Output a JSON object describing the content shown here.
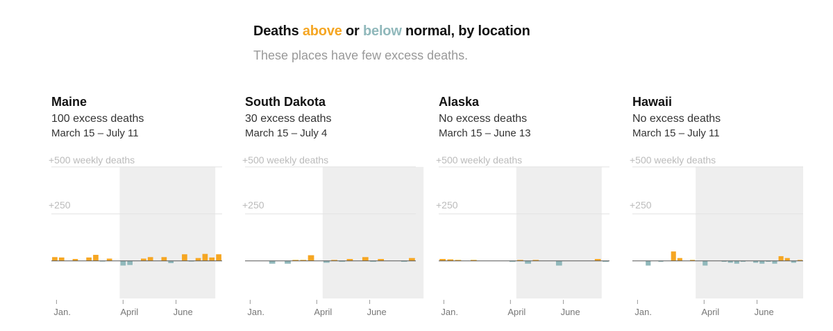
{
  "header": {
    "title_pre": "Deaths ",
    "title_above": "above",
    "title_mid": " or ",
    "title_below": "below",
    "title_post": " normal, by location",
    "subtitle": "These places have few excess deaths."
  },
  "colors": {
    "above": "#f5a623",
    "below": "#90b8bb",
    "shade": "#eeeeee",
    "grid": "#e2e2e2",
    "baseline": "#555555"
  },
  "chart_data": [
    {
      "type": "bar",
      "title": "Maine",
      "excess_text": "100 excess deaths",
      "period_text": "March 15 – July 11",
      "y_ticks": [
        "+500 weekly deaths",
        "+250"
      ],
      "x_ticks": [
        "Jan.",
        "April",
        "June"
      ],
      "ylim": [
        -200,
        500
      ],
      "values": [
        20,
        18,
        0,
        10,
        0,
        18,
        32,
        -3,
        12,
        0,
        -25,
        -22,
        0,
        12,
        20,
        0,
        20,
        -12,
        0,
        35,
        -3,
        15,
        37,
        18,
        35
      ],
      "shaded_range": [
        10,
        24
      ]
    },
    {
      "type": "bar",
      "title": "South Dakota",
      "excess_text": "30 excess deaths",
      "period_text": "March 15 – July 4",
      "y_ticks": [
        "+500 weekly deaths",
        "+250"
      ],
      "x_ticks": [
        "Jan.",
        "April",
        "June"
      ],
      "ylim": [
        -200,
        500
      ],
      "values": [
        0,
        0,
        0,
        -15,
        0,
        -15,
        5,
        5,
        30,
        0,
        -10,
        5,
        -5,
        10,
        0,
        20,
        -5,
        10,
        0,
        0,
        -5,
        15
      ],
      "shaded_range": [
        10,
        23
      ]
    },
    {
      "type": "bar",
      "title": "Alaska",
      "excess_text": "No excess deaths",
      "period_text": "March 15 – June 13",
      "y_ticks": [
        "+500 weekly deaths",
        "+250"
      ],
      "x_ticks": [
        "Jan.",
        "April",
        "June"
      ],
      "ylim": [
        -200,
        500
      ],
      "values": [
        10,
        8,
        5,
        0,
        5,
        0,
        0,
        0,
        0,
        -5,
        5,
        -15,
        5,
        0,
        0,
        -25,
        0,
        0,
        0,
        0,
        10,
        -5
      ],
      "shaded_range": [
        10,
        21
      ]
    },
    {
      "type": "bar",
      "title": "Hawaii",
      "excess_text": "No excess deaths",
      "period_text": "March 15 – July 11",
      "y_ticks": [
        "+500 weekly deaths",
        "+250"
      ],
      "x_ticks": [
        "Jan.",
        "April",
        "June"
      ],
      "ylim": [
        -200,
        500
      ],
      "values": [
        0,
        0,
        -25,
        0,
        -5,
        0,
        50,
        15,
        0,
        5,
        0,
        -25,
        0,
        0,
        -5,
        -10,
        -15,
        -5,
        0,
        -10,
        -15,
        -5,
        -15,
        25,
        15,
        -10,
        5
      ],
      "shaded_range": [
        10,
        27
      ]
    }
  ]
}
